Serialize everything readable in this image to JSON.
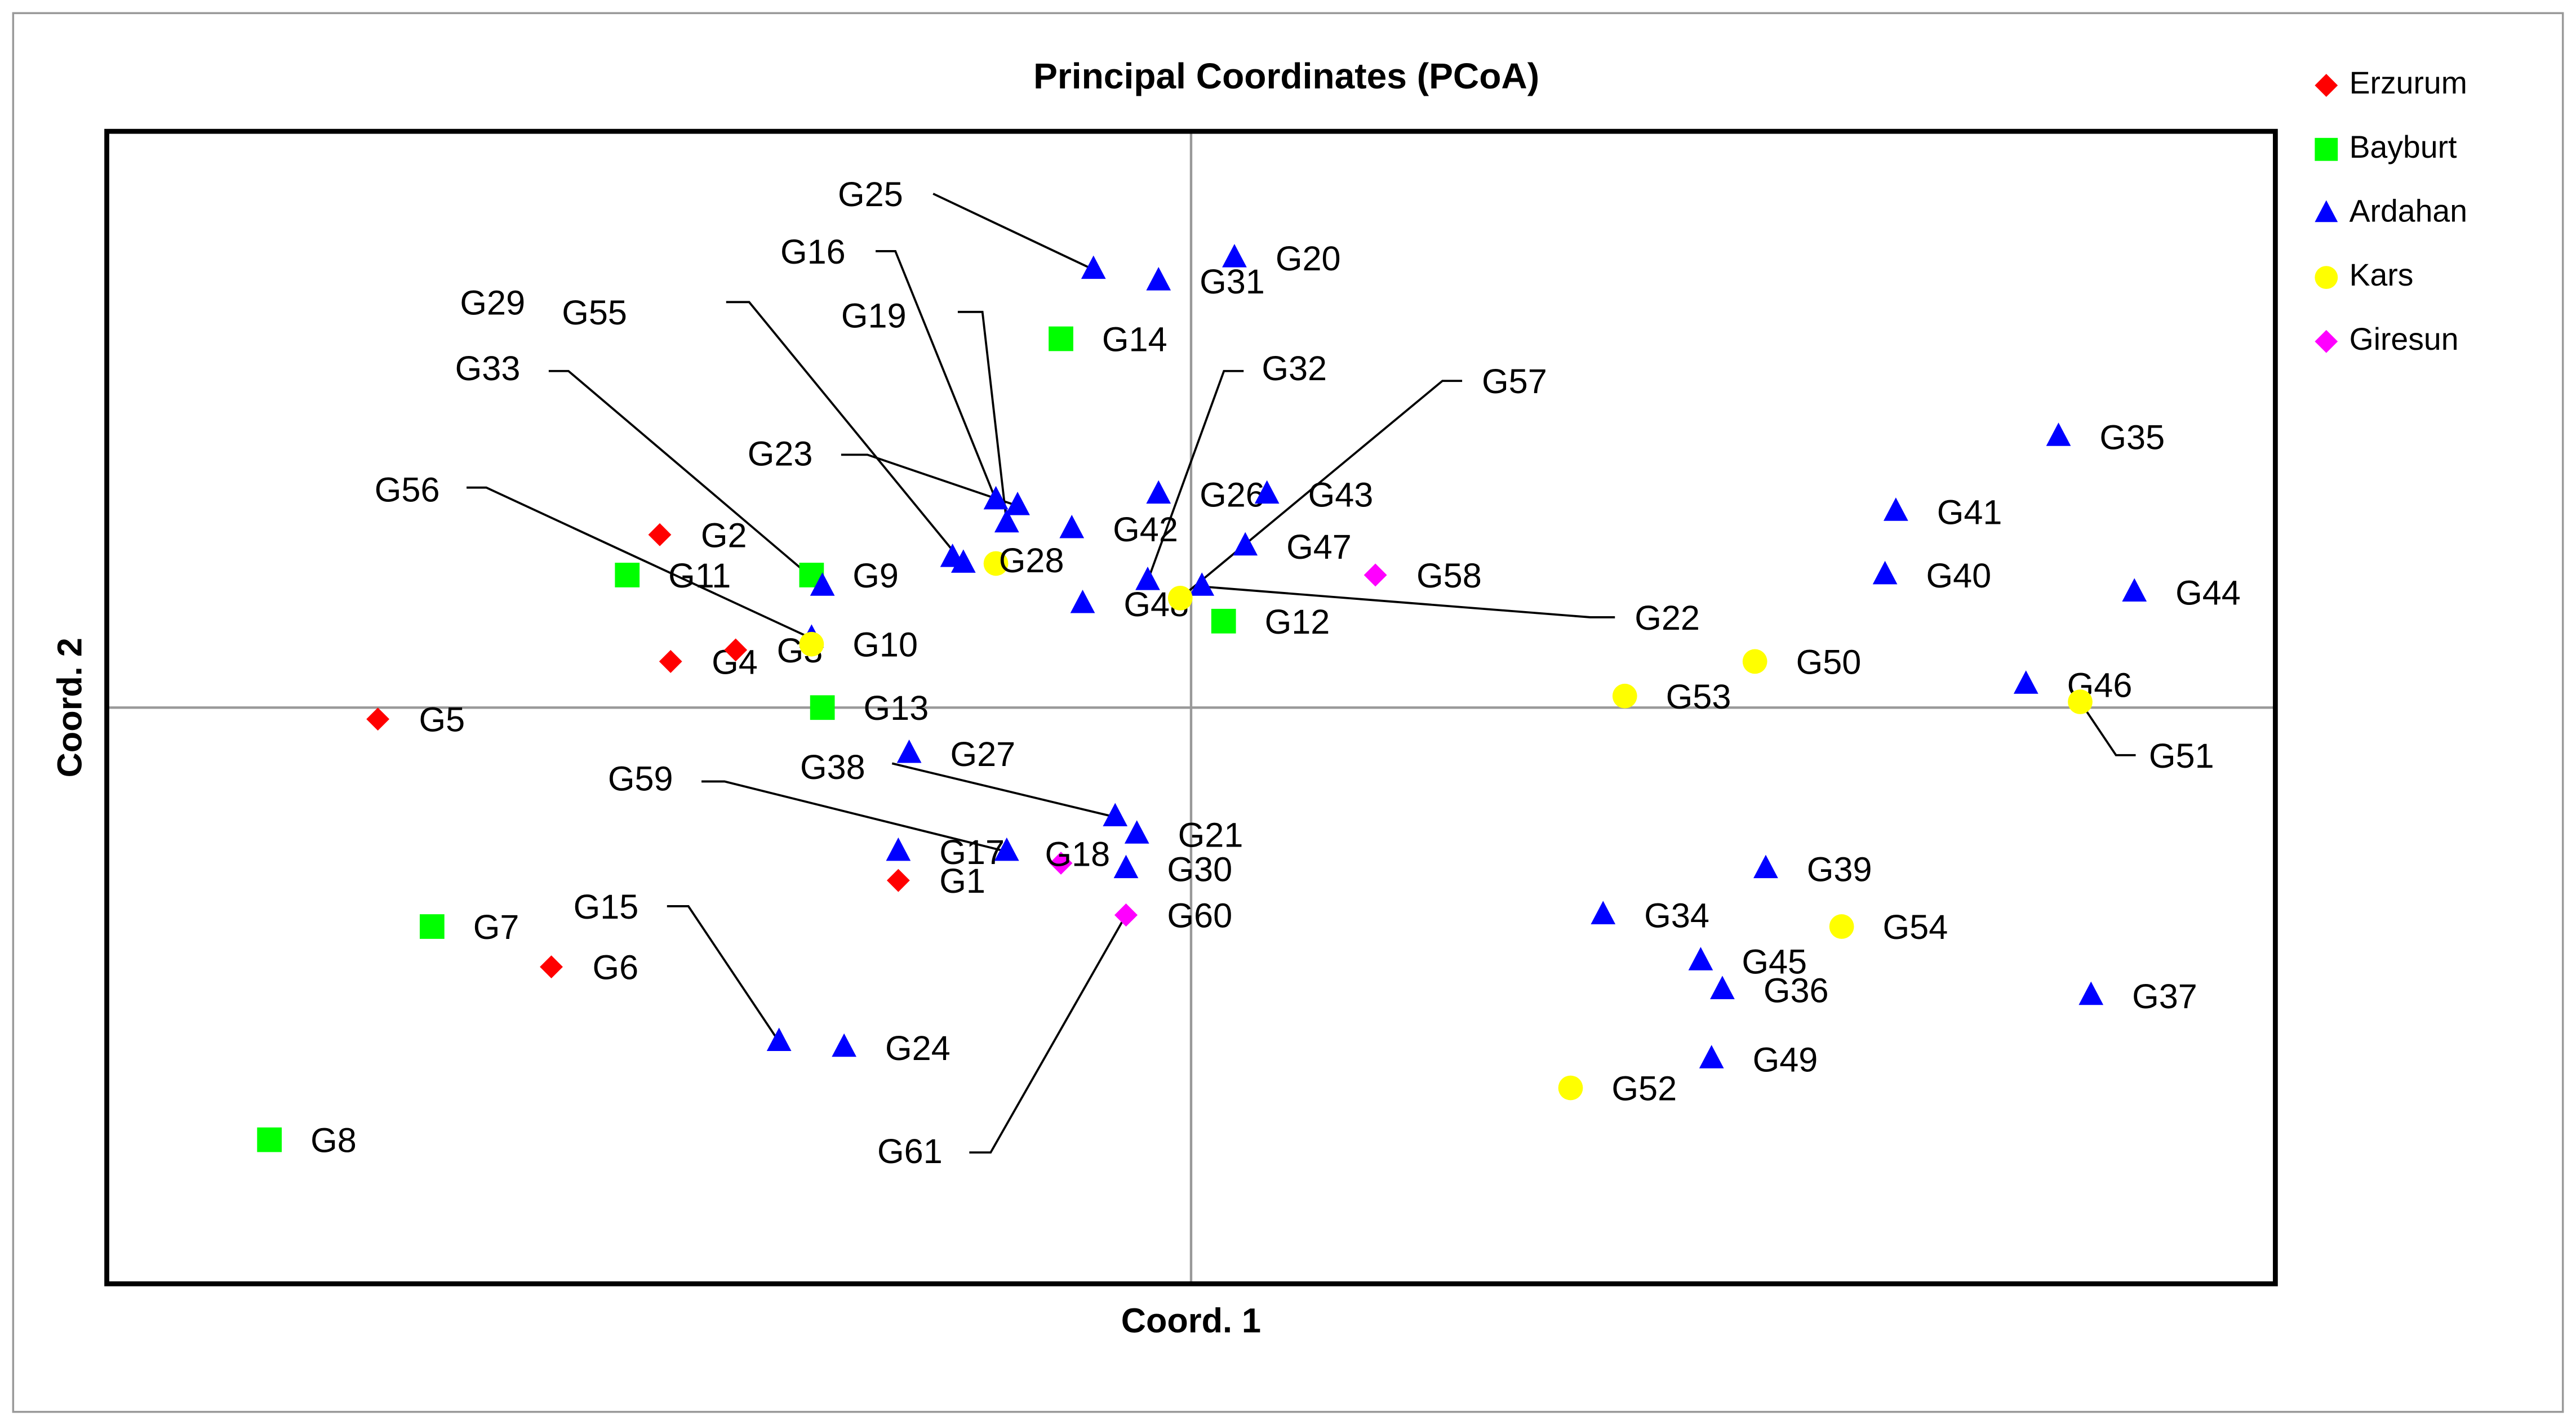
{
  "chart_data": {
    "type": "scatter",
    "title": "Principal Coordinates (PCoA)",
    "xlabel": "Coord. 1",
    "ylabel": "Coord. 2",
    "xlim": [
      -1,
      1
    ],
    "ylim": [
      -1,
      1
    ],
    "grid": false,
    "legend": "right",
    "series": [
      {
        "name": "Erzurum",
        "color": "#ff0000",
        "marker": "diamond",
        "labels": [
          "G2",
          "G4",
          "G3",
          "G5",
          "G1",
          "G6"
        ],
        "x": [
          -0.49,
          -0.48,
          -0.42,
          -0.75,
          -0.27,
          -0.59
        ],
        "y": [
          0.3,
          0.08,
          0.1,
          -0.02,
          -0.3,
          -0.45
        ]
      },
      {
        "name": "Bayburt",
        "color": "#00ff00",
        "marker": "square",
        "labels": [
          "G11",
          "G9",
          "G13",
          "G14",
          "G12",
          "G7",
          "G8"
        ],
        "x": [
          -0.52,
          -0.35,
          -0.34,
          -0.12,
          0.03,
          -0.7,
          -0.85
        ],
        "y": [
          0.23,
          0.23,
          0.0,
          0.64,
          0.15,
          -0.38,
          -0.75
        ]
      },
      {
        "name": "Ardahan",
        "color": "#0000ff",
        "marker": "triangle",
        "labels": [
          "G25",
          "G31",
          "G20",
          "G16",
          "G19",
          "G29",
          "G55",
          "G33",
          "G23",
          "G56",
          "G26",
          "G43",
          "G42",
          "G47",
          "G48",
          "G32",
          "G22",
          "G35",
          "G41",
          "G40",
          "G44",
          "G46",
          "G27",
          "G38",
          "G21",
          "G17",
          "G59",
          "G30",
          "G15",
          "G24",
          "G34",
          "G39",
          "G45",
          "G36",
          "G37",
          "G49"
        ],
        "x": [
          -0.09,
          -0.03,
          0.04,
          -0.18,
          -0.17,
          -0.22,
          -0.21,
          -0.34,
          -0.16,
          -0.35,
          -0.03,
          0.07,
          -0.11,
          0.05,
          -0.1,
          -0.04,
          0.01,
          0.8,
          0.65,
          0.64,
          0.87,
          0.77,
          -0.26,
          -0.07,
          -0.05,
          -0.27,
          -0.17,
          -0.06,
          -0.38,
          -0.32,
          0.38,
          0.53,
          0.47,
          0.49,
          0.83,
          0.48
        ],
        "y": [
          0.76,
          0.74,
          0.78,
          0.36,
          0.32,
          0.26,
          0.25,
          0.21,
          0.35,
          0.12,
          0.37,
          0.37,
          0.31,
          0.28,
          0.18,
          0.22,
          0.21,
          0.47,
          0.34,
          0.23,
          0.2,
          0.04,
          -0.08,
          -0.19,
          -0.22,
          -0.25,
          -0.25,
          -0.28,
          -0.58,
          -0.59,
          -0.36,
          -0.28,
          -0.44,
          -0.49,
          -0.5,
          -0.61
        ]
      },
      {
        "name": "Kars",
        "color": "#ffff00",
        "marker": "circle",
        "labels": [
          "G10",
          "G28",
          "G57",
          "G50",
          "G53",
          "G51",
          "G54",
          "G52"
        ],
        "x": [
          -0.35,
          -0.18,
          -0.01,
          0.52,
          0.4,
          0.82,
          0.6,
          0.35
        ],
        "y": [
          0.11,
          0.25,
          0.19,
          0.08,
          0.02,
          0.01,
          -0.38,
          -0.66
        ]
      },
      {
        "name": "Giresun",
        "color": "#ff00ff",
        "marker": "diamond",
        "labels": [
          "G58",
          "G18",
          "G60",
          "G61"
        ],
        "x": [
          0.17,
          -0.12,
          -0.06,
          -0.06
        ],
        "y": [
          0.23,
          -0.27,
          -0.36,
          -0.36
        ]
      }
    ]
  }
}
